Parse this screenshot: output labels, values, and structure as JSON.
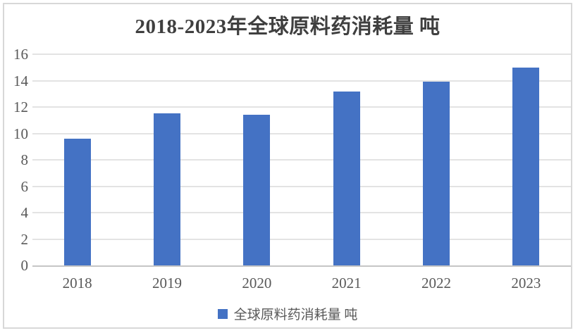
{
  "chart_data": {
    "type": "bar",
    "title": "2018-2023年全球原料药消耗量 吨",
    "categories": [
      "2018",
      "2019",
      "2020",
      "2021",
      "2022",
      "2023"
    ],
    "values": [
      9.6,
      11.5,
      11.4,
      13.2,
      13.9,
      15.0
    ],
    "series_name": "全球原料药消耗量 吨",
    "xlabel": "",
    "ylabel": "",
    "ylim": [
      0,
      16
    ],
    "y_ticks": [
      0,
      2,
      4,
      6,
      8,
      10,
      12,
      14,
      16
    ],
    "grid": "horizontal",
    "legend_position": "bottom",
    "colors": {
      "bar": "#4472C4",
      "title": "#3F3F3F",
      "tick_labels": "#595959",
      "gridline": "#E3E3E3",
      "axis_line": "#C6C6C6",
      "frame_border": "#D8D8D8",
      "background": "#FFFFFF"
    }
  },
  "legend": {
    "label": "全球原料药消耗量 吨"
  }
}
